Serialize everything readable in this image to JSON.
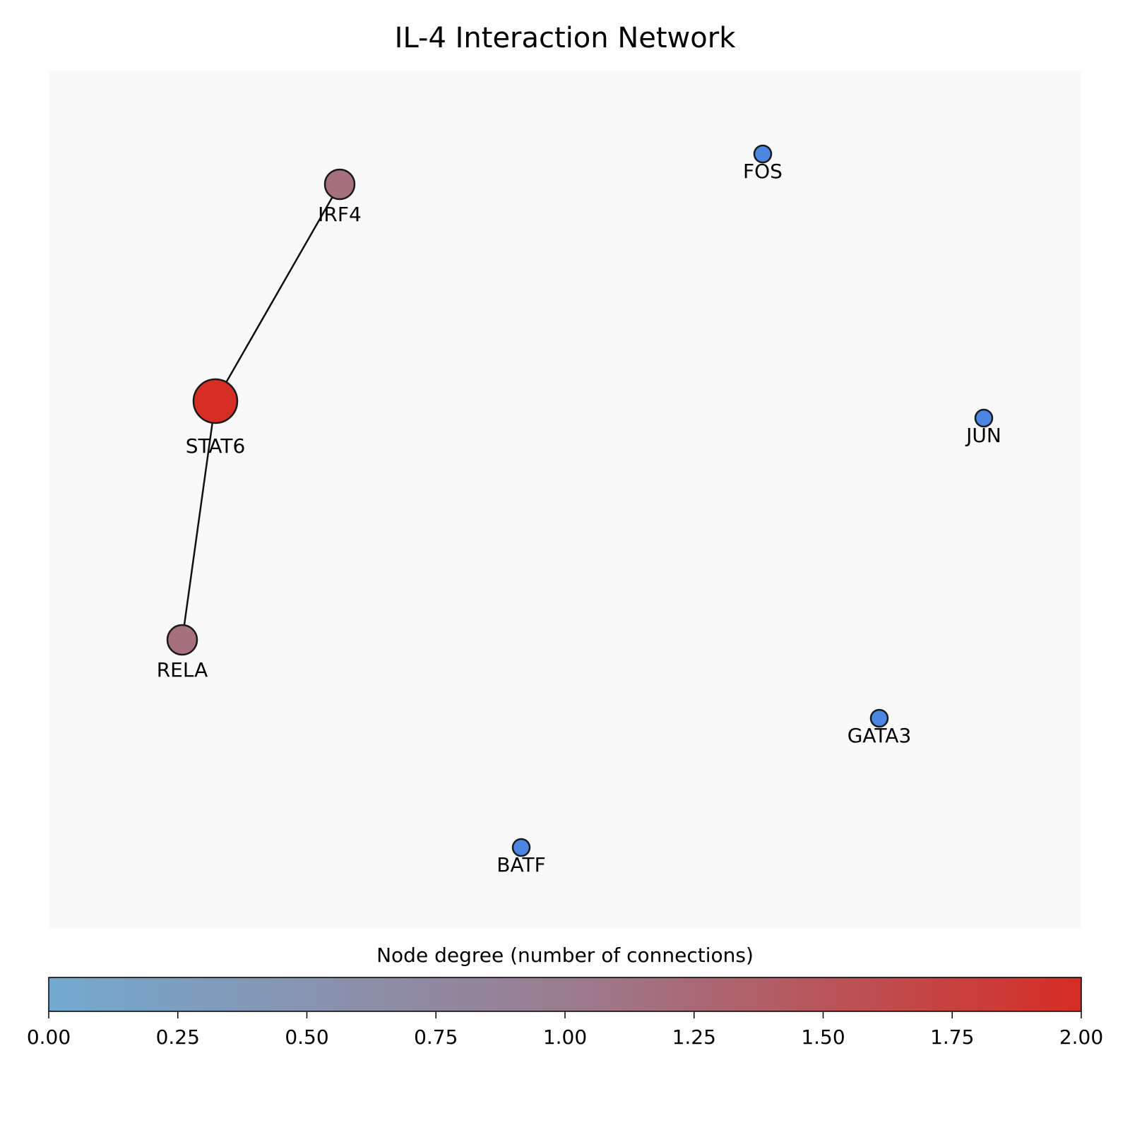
{
  "title": "IL-4 Interaction Network",
  "colors": {
    "plot_background": "#f9f9f9",
    "edge": "#111111",
    "node_outline": "#1a1a1a",
    "degree_0": "#4a86e2",
    "degree_1": "#a6707d",
    "degree_2": "#d62d24",
    "colormap_low": "#73aad0",
    "colormap_mid": "#9a7d90",
    "colormap_high": "#d62d24"
  },
  "nodes": [
    {
      "id": "IRF4",
      "label": "IRF4",
      "degree": 1
    },
    {
      "id": "STAT6",
      "label": "STAT6",
      "degree": 2
    },
    {
      "id": "RELA",
      "label": "RELA",
      "degree": 1
    },
    {
      "id": "FOS",
      "label": "FOS",
      "degree": 0
    },
    {
      "id": "JUN",
      "label": "JUN",
      "degree": 0
    },
    {
      "id": "GATA3",
      "label": "GATA3",
      "degree": 0
    },
    {
      "id": "BATF",
      "label": "BATF",
      "degree": 0
    }
  ],
  "edges": [
    {
      "source": "STAT6",
      "target": "IRF4"
    },
    {
      "source": "STAT6",
      "target": "RELA"
    }
  ],
  "colorbar": {
    "label": "Node degree (number of connections)",
    "ticks": [
      "0.00",
      "0.25",
      "0.50",
      "0.75",
      "1.00",
      "1.25",
      "1.50",
      "1.75",
      "2.00"
    ],
    "range": [
      0,
      2
    ]
  }
}
